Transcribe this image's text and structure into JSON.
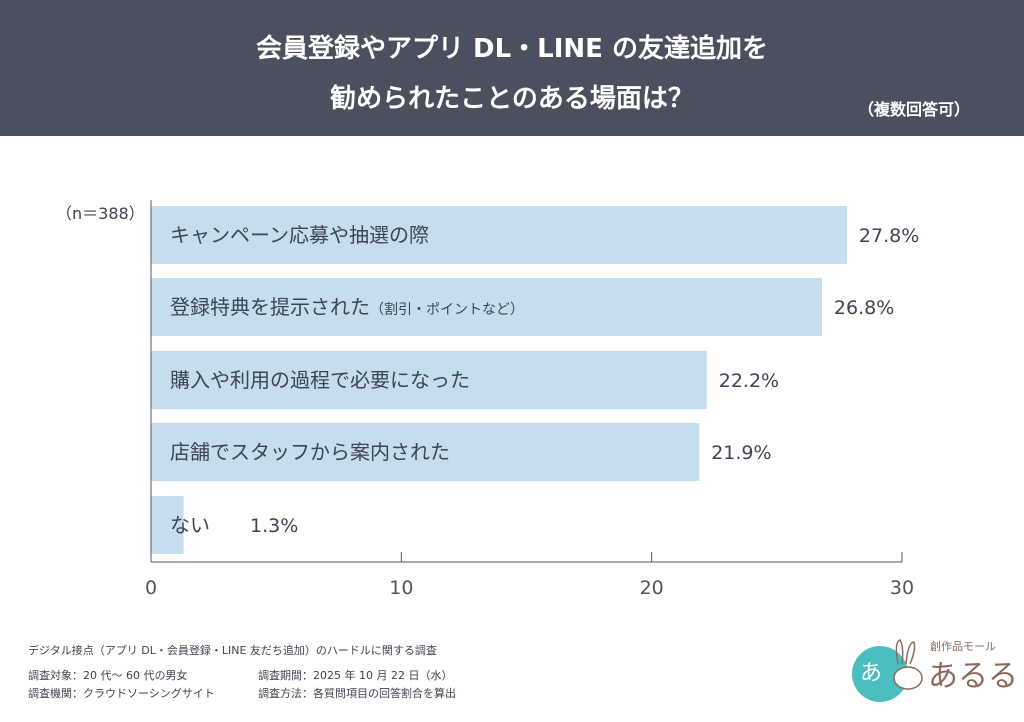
{
  "header": {
    "title_line1": "会員登録やアプリ DL・LINE の友達追加を",
    "title_line2": "勧められたことのある場面は？",
    "note": "（複数回答可）"
  },
  "sample": "（n＝388）",
  "chart_data": {
    "type": "bar",
    "orientation": "horizontal",
    "categories": [
      "キャンペーン応募や抽選の際",
      "登録特典を提示された",
      "購入や利用の過程で必要になった",
      "店舗でスタッフから案内された",
      "ない"
    ],
    "category_suffix": [
      "",
      "（割引・ポイントなど）",
      "",
      "",
      ""
    ],
    "values": [
      27.8,
      26.8,
      22.2,
      21.9,
      1.3
    ],
    "data_labels": [
      "27.8%",
      "26.8%",
      "22.2%",
      "21.9%",
      "1.3%"
    ],
    "xlim": [
      0,
      30
    ],
    "xticks": [
      "0",
      "10",
      "20",
      "30"
    ],
    "bar_color": "#c5ddec",
    "grid": false
  },
  "footer": {
    "survey_title": "デジタル接点（アプリ DL・会員登録・LINE 友だち追加）のハードルに関する調査",
    "target": "調査対象：20 代〜 60 代の男女",
    "period": "調査期間：2025 年 10 月 22 日（水）",
    "org": "調査機関：クラウドソーシングサイト",
    "method": "調査方法：各質問項目の回答割合を算出"
  },
  "logo": {
    "tagline": "創作品モール",
    "name": "あるる",
    "accent": "#4bbfc0",
    "text_color": "#8a6a5a"
  }
}
